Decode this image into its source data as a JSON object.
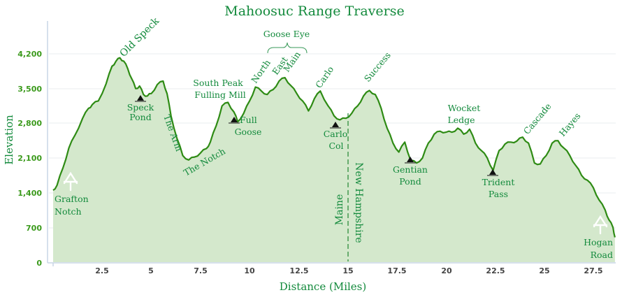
{
  "chart_data": {
    "type": "area",
    "title": "Mahoosuc Range Traverse",
    "xlabel": "Distance (Miles)",
    "ylabel": "Elevation",
    "xlim": [
      0,
      28.6
    ],
    "ylim": [
      0,
      4400
    ],
    "x_ticks": [
      "2.5",
      "5",
      "7.5",
      "10",
      "12.5",
      "15",
      "17.5",
      "20",
      "22.5",
      "25",
      "27.5"
    ],
    "y_ticks": [
      "0",
      "700",
      "1,400",
      "2,100",
      "2,800",
      "3,500",
      "4,200"
    ],
    "grid": true,
    "legend": null,
    "line_color": "#2e8b14",
    "fill_color": "#d4e8cc",
    "series": [
      {
        "name": "Elevation profile",
        "x": [
          0,
          0.2,
          0.5,
          0.8,
          1.1,
          1.5,
          1.8,
          2.0,
          2.3,
          2.7,
          3.0,
          3.2,
          3.4,
          3.6,
          3.8,
          4.0,
          4.2,
          4.4,
          4.6,
          4.8,
          5.0,
          5.3,
          5.6,
          5.8,
          6.0,
          6.3,
          6.6,
          6.9,
          7.2,
          7.5,
          7.8,
          8.0,
          8.3,
          8.6,
          8.9,
          9.2,
          9.4,
          9.7,
          10.0,
          10.3,
          10.6,
          10.9,
          11.2,
          11.5,
          11.8,
          12.1,
          12.4,
          12.7,
          13.0,
          13.3,
          13.6,
          14.0,
          14.3,
          14.6,
          14.9,
          15.2,
          15.5,
          15.8,
          16.1,
          16.4,
          16.7,
          17.0,
          17.3,
          17.6,
          17.9,
          18.2,
          18.5,
          18.8,
          19.1,
          19.4,
          19.7,
          20.0,
          20.3,
          20.6,
          20.9,
          21.2,
          21.5,
          21.8,
          22.1,
          22.4,
          22.7,
          23.0,
          23.3,
          23.6,
          23.9,
          24.2,
          24.5,
          24.8,
          25.1,
          25.4,
          25.7,
          26.0,
          26.3,
          26.6,
          26.9,
          27.2,
          27.5,
          27.8,
          28.1,
          28.3,
          28.5,
          28.6
        ],
        "values": [
          1450,
          1550,
          1900,
          2300,
          2550,
          2900,
          3100,
          3180,
          3250,
          3600,
          3950,
          4050,
          4120,
          4050,
          3900,
          3700,
          3500,
          3550,
          3380,
          3350,
          3400,
          3580,
          3650,
          3400,
          2950,
          2500,
          2150,
          2060,
          2120,
          2200,
          2290,
          2420,
          2750,
          3150,
          3220,
          3030,
          2830,
          3000,
          3250,
          3530,
          3450,
          3380,
          3480,
          3650,
          3720,
          3560,
          3400,
          3250,
          3050,
          3300,
          3450,
          3150,
          2950,
          2870,
          2900,
          3000,
          3150,
          3350,
          3460,
          3380,
          3100,
          2700,
          2400,
          2220,
          2420,
          2050,
          2000,
          2100,
          2400,
          2580,
          2640,
          2620,
          2620,
          2700,
          2580,
          2680,
          2400,
          2250,
          2100,
          1850,
          2250,
          2380,
          2420,
          2440,
          2520,
          2400,
          2000,
          1980,
          2150,
          2400,
          2450,
          2300,
          2150,
          1950,
          1750,
          1650,
          1500,
          1250,
          1050,
          850,
          700,
          500
        ]
      }
    ],
    "annotations": [
      {
        "text": "Old Speck",
        "x": 3.4,
        "type": "peak"
      },
      {
        "text": "Speck Pond",
        "x": 4.5,
        "type": "campsite"
      },
      {
        "text": "The Arm",
        "x": 5.9,
        "type": "feature"
      },
      {
        "text": "The Notch",
        "x": 7.3,
        "type": "feature"
      },
      {
        "text": "South Peak Fulling Mill",
        "x": 8.6,
        "type": "peak"
      },
      {
        "text": "Full Goose",
        "x": 9.3,
        "type": "campsite"
      },
      {
        "text": "Goose Eye",
        "group": [
          "North",
          "East",
          "Main"
        ],
        "type": "peak-group"
      },
      {
        "text": "North",
        "x": 10.3,
        "type": "peak"
      },
      {
        "text": "East",
        "x": 11.5,
        "type": "peak"
      },
      {
        "text": "Main",
        "x": 11.8,
        "type": "peak"
      },
      {
        "text": "Carlo",
        "x": 13.6,
        "type": "peak"
      },
      {
        "text": "Carlo Col",
        "x": 14.4,
        "type": "campsite"
      },
      {
        "text": "Maine",
        "x": 14.7,
        "type": "state"
      },
      {
        "text": "New Hampshire",
        "x": 15.3,
        "type": "state"
      },
      {
        "text": "Success",
        "x": 16.1,
        "type": "peak"
      },
      {
        "text": "Gentian Pond",
        "x": 18.2,
        "type": "campsite"
      },
      {
        "text": "Wocket Ledge",
        "x": 20.9,
        "type": "peak"
      },
      {
        "text": "Trident Pass",
        "x": 22.3,
        "type": "campsite"
      },
      {
        "text": "Cascade",
        "x": 24.0,
        "type": "peak"
      },
      {
        "text": "Hayes",
        "x": 25.8,
        "type": "peak"
      },
      {
        "text": "Grafton Notch",
        "x": 0.9,
        "type": "trailhead"
      },
      {
        "text": "Hogan Road",
        "x": 27.9,
        "type": "trailhead"
      }
    ],
    "state_line_x": 15.1
  },
  "labels": {
    "title": "Mahoosuc Range Traverse",
    "xlabel": "Distance (Miles)",
    "ylabel": "Elevation",
    "x_ticks": [
      "2.5",
      "5",
      "7.5",
      "10",
      "12.5",
      "15",
      "17.5",
      "20",
      "22.5",
      "25",
      "27.5"
    ],
    "y_ticks": [
      "0",
      "700",
      "1,400",
      "2,100",
      "2,800",
      "3,500",
      "4,200"
    ],
    "old_speck": "Old Speck",
    "speck": "Speck",
    "pond": "Pond",
    "the_arm": "The Arm",
    "the_notch": "The Notch",
    "south_peak": "South Peak",
    "fulling_mill": "Fulling Mill",
    "full": "Full",
    "goose": "Goose",
    "goose_eye": "Goose Eye",
    "north": "North",
    "east": "East",
    "main": "Main",
    "carlo": "Carlo",
    "carlo_col_1": "Carlo",
    "carlo_col_2": "Col",
    "maine": "Maine",
    "new_hampshire": "New Hampshire",
    "success": "Success",
    "gentian": "Gentian",
    "gentian_pond": "Pond",
    "wocket": "Wocket",
    "ledge": "Ledge",
    "trident": "Trident",
    "pass": "Pass",
    "cascade": "Cascade",
    "hayes": "Hayes",
    "grafton": "Grafton",
    "notch": "Notch",
    "hogan": "Hogan",
    "road": "Road"
  },
  "icons": {
    "campsite": "tent-icon",
    "trailhead": "appalachian-trail-icon"
  },
  "colors": {
    "line": "#2e8b14",
    "fill": "#d4e8cc",
    "text": "#138a3c",
    "ytick": "#3b9a1c"
  }
}
